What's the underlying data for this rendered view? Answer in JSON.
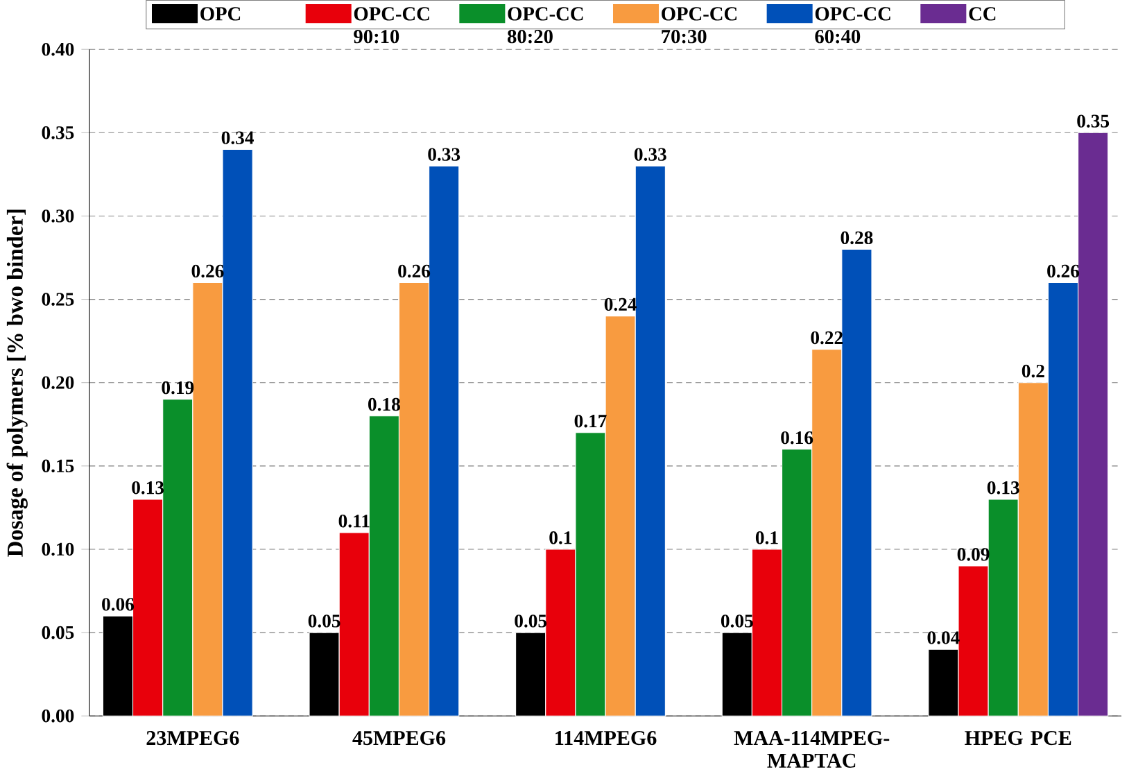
{
  "chart_data": {
    "type": "bar",
    "ylabel": "Dosage of polymers [% bwo binder]",
    "categories": [
      "23MPEG6",
      "45MPEG6",
      "114MPEG6",
      "MAA-114MPEG-MAPTAC",
      "HPEG PCE"
    ],
    "series": [
      {
        "name": "OPC",
        "color": "#000000",
        "values": [
          0.06,
          0.05,
          0.05,
          0.05,
          0.04
        ],
        "value_labels": [
          "0.06",
          "0.05",
          "0.05",
          "0.05",
          "0.04"
        ]
      },
      {
        "name": "OPC-CC 90:10",
        "color": "#e8000b",
        "values": [
          0.13,
          0.11,
          0.1,
          0.1,
          0.09
        ],
        "value_labels": [
          "0.13",
          "0.11",
          "0.1",
          "0.1",
          "0.09"
        ]
      },
      {
        "name": "OPC-CC 80:20",
        "color": "#0a8f2a",
        "values": [
          0.19,
          0.18,
          0.17,
          0.16,
          0.13
        ],
        "value_labels": [
          "0.19",
          "0.18",
          "0.17",
          "0.16",
          "0.13"
        ]
      },
      {
        "name": "OPC-CC 70:30",
        "color": "#f89b40",
        "values": [
          0.26,
          0.26,
          0.24,
          0.22,
          0.2
        ],
        "value_labels": [
          "0.26",
          "0.26",
          "0.24",
          "0.22",
          "0.2"
        ]
      },
      {
        "name": "OPC-CC 60:40",
        "color": "#0050b8",
        "values": [
          0.34,
          0.33,
          0.33,
          0.28,
          0.26
        ],
        "value_labels": [
          "0.34",
          "0.33",
          "0.33",
          "0.28",
          "0.26"
        ]
      },
      {
        "name": "CC",
        "color": "#6a2c91",
        "values": [
          null,
          null,
          null,
          null,
          0.35
        ],
        "value_labels": [
          null,
          null,
          null,
          null,
          "0.35"
        ]
      }
    ],
    "ylim": [
      0,
      0.4
    ],
    "yticks": [
      {
        "value": 0,
        "label": "0.00"
      },
      {
        "value": 0.05,
        "label": "0.05"
      },
      {
        "value": 0.1,
        "label": "0.10"
      },
      {
        "value": 0.15,
        "label": "0.15"
      },
      {
        "value": 0.2,
        "label": "0.20"
      },
      {
        "value": 0.25,
        "label": "0.25"
      },
      {
        "value": 0.3,
        "label": "0.30"
      },
      {
        "value": 0.35,
        "label": "0.35"
      },
      {
        "value": 0.4,
        "label": "0.40"
      }
    ],
    "grid": "y",
    "legend": "top"
  }
}
